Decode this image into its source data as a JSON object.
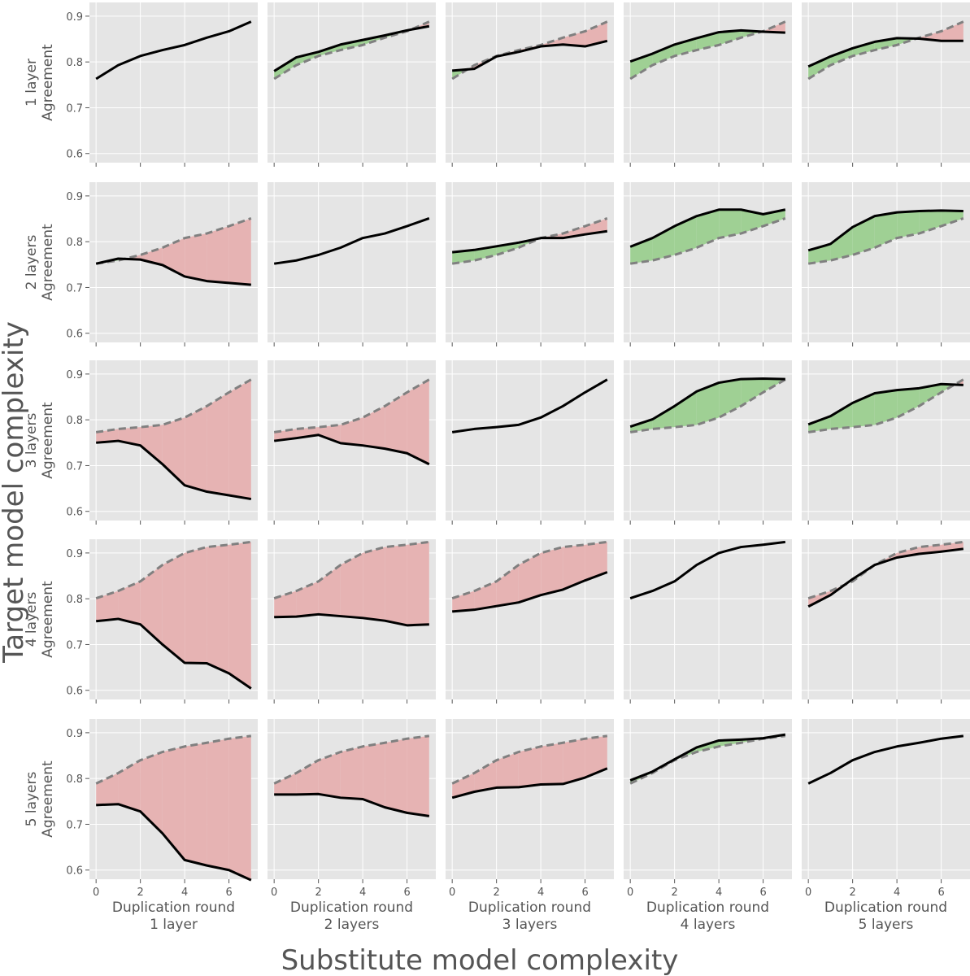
{
  "figure": {
    "x_super_label": "Substitute model complexity",
    "y_super_label": "Target model complexity"
  },
  "chart_data": {
    "type": "line",
    "layout": "5x5 facet grid of agreement curves; rows = target model complexity, columns = substitute model complexity",
    "x": [
      0,
      1,
      2,
      3,
      4,
      5,
      6,
      7
    ],
    "xlabel": "Duplication round",
    "ylabel": "Agreement",
    "xticks": [
      0,
      2,
      4,
      6
    ],
    "yticks": [
      0.6,
      0.7,
      0.8,
      0.9
    ],
    "ylim": [
      0.58,
      0.93
    ],
    "xlim": [
      -0.3,
      7.3
    ],
    "grid": true,
    "row_labels": [
      "1 layer",
      "2 layers",
      "3 layers",
      "4 layers",
      "5 layers"
    ],
    "col_labels": [
      "1 layer",
      "2 layers",
      "3 layers",
      "4 layers",
      "5 layers"
    ],
    "fill_colors": {
      "above_reference": "#9fd094",
      "below_reference": "#e6b3b3"
    },
    "reference_line": "dashed gray = matched-complexity baseline (diagonal panel of the same row)",
    "rows": [
      {
        "target": "1 layer",
        "reference": [
          0.763,
          0.793,
          0.813,
          0.826,
          0.837,
          0.853,
          0.867,
          0.888
        ],
        "substitutes": [
          [
            0.763,
            0.793,
            0.813,
            0.826,
            0.837,
            0.853,
            0.867,
            0.888
          ],
          [
            0.78,
            0.81,
            0.822,
            0.838,
            0.848,
            0.858,
            0.869,
            0.878
          ],
          [
            0.781,
            0.785,
            0.812,
            0.822,
            0.834,
            0.838,
            0.834,
            0.846
          ],
          [
            0.801,
            0.818,
            0.838,
            0.852,
            0.865,
            0.869,
            0.866,
            0.864
          ],
          [
            0.79,
            0.812,
            0.83,
            0.844,
            0.852,
            0.851,
            0.846,
            0.846
          ]
        ]
      },
      {
        "target": "2 layers",
        "reference": [
          0.752,
          0.759,
          0.771,
          0.787,
          0.808,
          0.818,
          0.834,
          0.851
        ],
        "substitutes": [
          [
            0.752,
            0.763,
            0.761,
            0.749,
            0.724,
            0.714,
            0.71,
            0.706
          ],
          [
            0.752,
            0.759,
            0.771,
            0.787,
            0.808,
            0.818,
            0.834,
            0.851
          ],
          [
            0.777,
            0.782,
            0.79,
            0.798,
            0.808,
            0.808,
            0.816,
            0.823
          ],
          [
            0.789,
            0.808,
            0.834,
            0.856,
            0.87,
            0.87,
            0.86,
            0.87
          ],
          [
            0.781,
            0.795,
            0.832,
            0.856,
            0.864,
            0.867,
            0.868,
            0.867
          ]
        ]
      },
      {
        "target": "3 layers",
        "reference": [
          0.773,
          0.78,
          0.784,
          0.789,
          0.805,
          0.83,
          0.86,
          0.888
        ],
        "substitutes": [
          [
            0.75,
            0.754,
            0.744,
            0.703,
            0.657,
            0.643,
            0.635,
            0.627
          ],
          [
            0.754,
            0.76,
            0.767,
            0.749,
            0.744,
            0.737,
            0.727,
            0.703
          ],
          [
            0.773,
            0.78,
            0.784,
            0.789,
            0.805,
            0.83,
            0.86,
            0.888
          ],
          [
            0.785,
            0.801,
            0.83,
            0.862,
            0.881,
            0.889,
            0.89,
            0.889
          ],
          [
            0.79,
            0.808,
            0.837,
            0.858,
            0.865,
            0.869,
            0.878,
            0.876
          ]
        ]
      },
      {
        "target": "4 layers",
        "reference": [
          0.801,
          0.817,
          0.838,
          0.874,
          0.9,
          0.913,
          0.918,
          0.924
        ],
        "substitutes": [
          [
            0.751,
            0.756,
            0.744,
            0.7,
            0.66,
            0.659,
            0.637,
            0.604
          ],
          [
            0.76,
            0.761,
            0.766,
            0.762,
            0.758,
            0.752,
            0.742,
            0.744
          ],
          [
            0.772,
            0.776,
            0.784,
            0.792,
            0.808,
            0.82,
            0.84,
            0.858
          ],
          [
            0.801,
            0.817,
            0.838,
            0.874,
            0.9,
            0.913,
            0.918,
            0.924
          ],
          [
            0.783,
            0.808,
            0.843,
            0.874,
            0.89,
            0.898,
            0.903,
            0.909
          ]
        ]
      },
      {
        "target": "5 layers",
        "reference": [
          0.789,
          0.812,
          0.84,
          0.858,
          0.87,
          0.878,
          0.887,
          0.893
        ],
        "substitutes": [
          [
            0.742,
            0.744,
            0.728,
            0.68,
            0.622,
            0.61,
            0.6,
            0.578
          ],
          [
            0.765,
            0.765,
            0.766,
            0.758,
            0.755,
            0.737,
            0.725,
            0.718
          ],
          [
            0.758,
            0.771,
            0.78,
            0.781,
            0.787,
            0.788,
            0.802,
            0.822
          ],
          [
            0.796,
            0.815,
            0.842,
            0.868,
            0.883,
            0.885,
            0.888,
            0.896
          ],
          [
            0.789,
            0.812,
            0.84,
            0.858,
            0.87,
            0.878,
            0.887,
            0.893
          ]
        ]
      }
    ]
  }
}
